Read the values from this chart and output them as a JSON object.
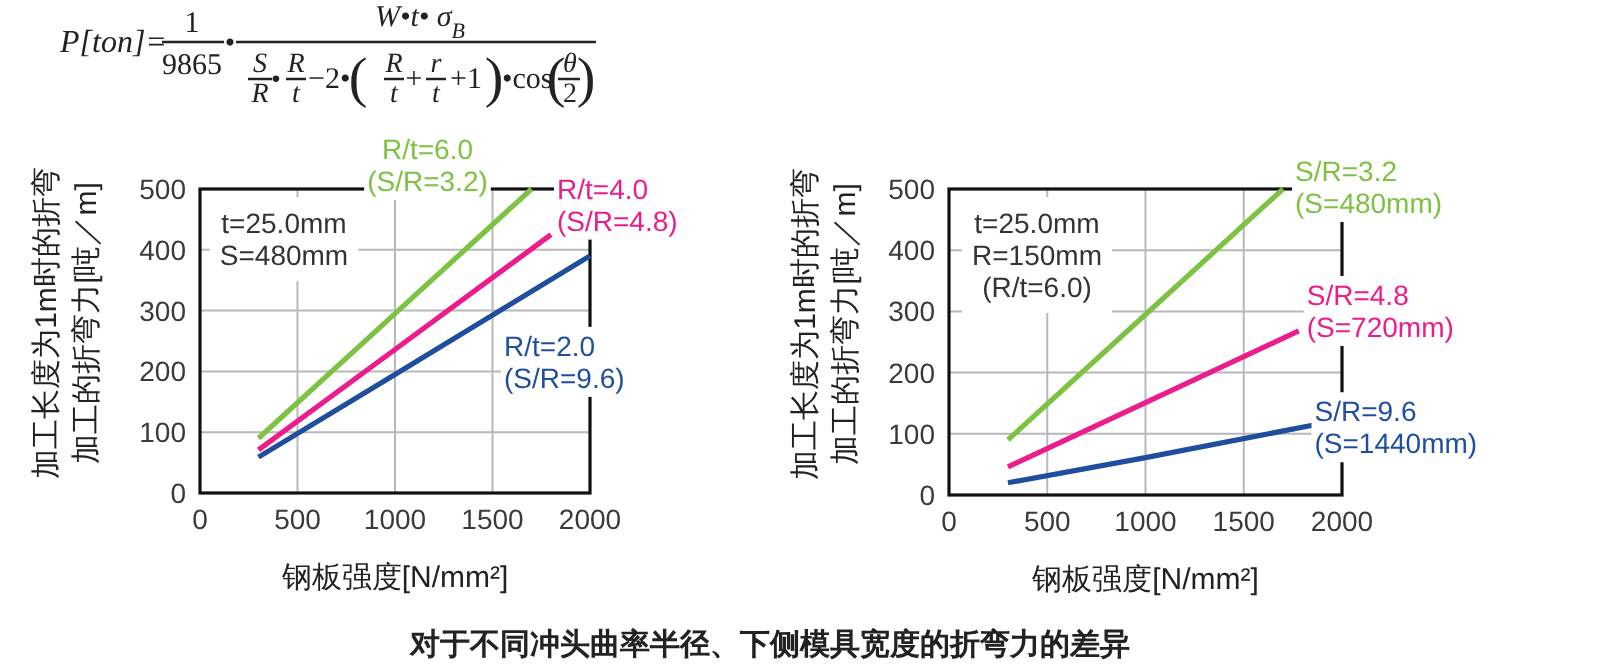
{
  "chart_data": [
    {
      "type": "other",
      "annotations": [
        "P[ton]=",
        "1",
        "9865",
        "•",
        "W•t• σ$_{B}$",
        "S",
        "R",
        "•",
        "R",
        "t",
        "−2•",
        "(",
        "R",
        "t",
        "+",
        "r",
        "t",
        "+1",
        ")",
        "•cos",
        "(",
        "θ",
        "2",
        ")"
      ]
    },
    {
      "type": "line",
      "xlabel": "钢板强度[N/mm²]",
      "ylabel": "加工长度为1m时的折弯加工的折弯力[吨／m]",
      "xlim": [
        0,
        2000
      ],
      "ylim": [
        0,
        500
      ],
      "xticks": [
        0,
        500,
        1000,
        1500,
        2000
      ],
      "yticks": [
        0,
        100,
        200,
        300,
        400,
        500
      ],
      "grid": true,
      "annotations": [
        "t=25.0mm",
        "S=480mm"
      ],
      "series": [
        {
          "name": "R/t=6.0 (S/R=3.2)",
          "color": "#7dc242",
          "x": [
            300,
            1000,
            1700
          ],
          "values": [
            90,
            295,
            500
          ]
        },
        {
          "name": "R/t=4.0 (S/R=4.8)",
          "color": "#ec1c8c",
          "x": [
            300,
            1000,
            1800
          ],
          "values": [
            71,
            236,
            425
          ]
        },
        {
          "name": "R/t=2.0 (S/R=9.6)",
          "color": "#1f4e9f",
          "x": [
            300,
            1000,
            2000
          ],
          "values": [
            59,
            195,
            390
          ]
        }
      ]
    },
    {
      "type": "line",
      "xlabel": "钢板强度[N/mm²]",
      "ylabel": "加工长度为1m时的折弯加工的折弯力[吨／m]",
      "xlim": [
        0,
        2000
      ],
      "ylim": [
        0,
        500
      ],
      "xticks": [
        0,
        500,
        1000,
        1500,
        2000
      ],
      "yticks": [
        0,
        100,
        200,
        300,
        400,
        500
      ],
      "grid": true,
      "annotations": [
        "t=25.0mm",
        "R=150mm",
        "(R/t=6.0)"
      ],
      "series": [
        {
          "name": "S/R=3.2 (S=480mm)",
          "color": "#7dc242",
          "x": [
            300,
            1000,
            1700
          ],
          "values": [
            90,
            295,
            500
          ]
        },
        {
          "name": "S/R=4.8 (S=720mm)",
          "color": "#ec1c8c",
          "x": [
            300,
            1000,
            1780
          ],
          "values": [
            46,
            151,
            268
          ]
        },
        {
          "name": "S/R=9.6 (S=1440mm)",
          "color": "#1f4e9f",
          "x": [
            300,
            1000,
            1850
          ],
          "values": [
            20,
            61,
            114
          ]
        }
      ]
    },
    {
      "type": "other",
      "title": "对于不同冲头曲率半径、下侧模具宽度的折弯力的差异"
    }
  ]
}
